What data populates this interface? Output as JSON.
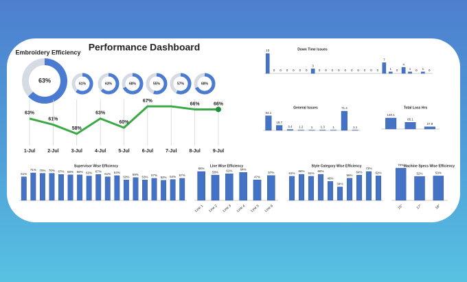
{
  "title": "Performance Dashboard",
  "chart_data": [
    {
      "type": "donut",
      "title": "Embroidery Efficiency",
      "values": [
        63
      ],
      "value_labels": [
        "63%"
      ],
      "color": "#4a7bd0"
    },
    {
      "type": "donut",
      "values": [
        61,
        63,
        68,
        55,
        57,
        68
      ],
      "value_labels": [
        "61%",
        "63%",
        "68%",
        "55%",
        "57%",
        "68%"
      ],
      "color": "#4a7bd0"
    },
    {
      "type": "line",
      "categories": [
        "1-Jul",
        "2-Jul",
        "3-Jul",
        "4-Jul",
        "5-Jul",
        "6-Jul",
        "7-Jul",
        "8-Jul",
        "9-Jul"
      ],
      "values": [
        63,
        61,
        58,
        63,
        60,
        67,
        67,
        66,
        66
      ],
      "value_labels": [
        "63%",
        "61%",
        "58%",
        "63%",
        "60%",
        "67%",
        null,
        "66%",
        "66%"
      ],
      "color": "#3aa845"
    },
    {
      "type": "bar",
      "title": "Down Time Issues",
      "values": [
        13,
        0,
        0,
        0,
        0,
        0,
        0,
        3,
        0,
        0,
        0,
        0,
        0,
        0,
        0,
        0,
        0,
        0,
        7,
        1,
        0,
        4,
        1,
        0,
        1,
        0
      ],
      "color": "#4472c4"
    },
    {
      "type": "bar",
      "title": "General Issues",
      "values": [
        54.1,
        18.7,
        3.4,
        1.2,
        1.0,
        1.3,
        1.0,
        71.4,
        1.1
      ],
      "color": "#4472c4"
    },
    {
      "type": "bar",
      "title": "Total Loss Hrs",
      "values": [
        140.1,
        85.1,
        27.8
      ],
      "color": "#4472c4"
    },
    {
      "type": "bar",
      "title": "Supervisor Wise Efficiency",
      "values": [
        61,
        71,
        70,
        70,
        67,
        66,
        66,
        63,
        67,
        61,
        64,
        53,
        59,
        53,
        57,
        52,
        54,
        57
      ],
      "value_labels": [
        "61%",
        "71%",
        "70%",
        "70%",
        "67%",
        "66%",
        "66%",
        "63%",
        "67%",
        "61%",
        "64%",
        "53%",
        "59%",
        "53%",
        "57%",
        "52%",
        "54%",
        "57%"
      ],
      "color": "#4472c4"
    },
    {
      "type": "bar",
      "title": "Line Wise Efficiency",
      "categories": [
        "Line 1",
        "Line 2",
        "Line 3",
        "Line 4",
        "Line 5",
        "Line 6"
      ],
      "values": [
        66,
        58,
        61,
        64,
        47,
        57
      ],
      "value_labels": [
        "66%",
        "58%",
        "61%",
        "64%",
        "47%",
        "57%"
      ],
      "color": "#4472c4"
    },
    {
      "type": "bar",
      "title": "Style Category Wise Efficiency",
      "values": [
        61,
        66,
        61,
        66,
        48,
        34,
        56,
        64,
        73,
        62
      ],
      "value_labels": [
        "61%",
        "66%",
        "61%",
        "66%",
        "48%",
        "34%",
        "56%",
        "64%",
        "73%",
        "62%"
      ],
      "color": "#4472c4"
    },
    {
      "type": "bar",
      "title": "Machine Specs Wise Efficiency",
      "categories": [
        "15\"",
        "17\"",
        "18\""
      ],
      "values": [
        70,
        52,
        53
      ],
      "value_labels": [
        "70%",
        "52%",
        "53%"
      ],
      "color": "#4472c4"
    }
  ]
}
